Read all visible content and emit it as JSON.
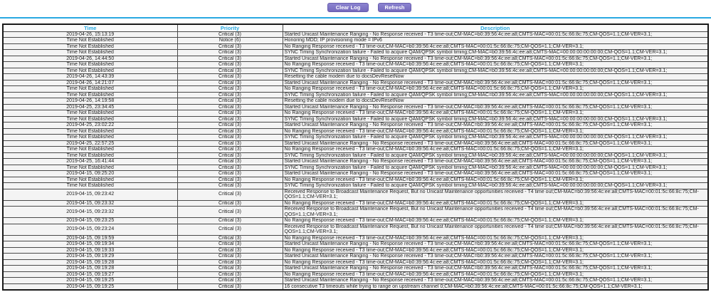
{
  "colors": {
    "accent_cyan": "#29a9e1",
    "button_purple": "#7d74c4",
    "priority_critical_label": "Critical (3)",
    "priority_notice_label": "Notice (6)"
  },
  "toolbar": {
    "clear_log_label": "Clear Log",
    "refresh_label": "Refresh"
  },
  "table": {
    "columns": [
      "Time",
      "Priority",
      "Description"
    ],
    "rows": [
      {
        "time": "2019-04-26, 15:13:19",
        "priority": "Critical (3)",
        "description": "Started Unicast Maintenance Ranging - No Response received - T3 time-out;CM-MAC=b0:39:56:4c:ee:a8;CMTS-MAC=00:01:5c:66:8c:75;CM-QOS=1.1;CM-VER=3.1;"
      },
      {
        "time": "Time Not Established",
        "priority": "Notice (6)",
        "description": "Honoring MDD; IP provisioning mode = IPv6"
      },
      {
        "time": "Time Not Established",
        "priority": "Critical (3)",
        "description": "No Ranging Response received - T3 time-out;CM-MAC=b0:39:56:4c:ee:a8;CMTS-MAC=00:01:5c:66:8c:75;CM-QOS=1.1;CM-VER=3.1;"
      },
      {
        "time": "Time Not Established",
        "priority": "Critical (3)",
        "description": "SYNC Timing Synchronization failure - Failed to acquire QAM/QPSK symbol timing;CM-MAC=b0:39:56:4c:ee:a8;CMTS-MAC=00:00:00:00:00:00;CM-QOS=1.1;CM-VER=3.1;"
      },
      {
        "time": "2019-04-26, 14:44:50",
        "priority": "Critical (3)",
        "description": "Started Unicast Maintenance Ranging - No Response received - T3 time-out;CM-MAC=b0:39:56:4c:ee:a8;CMTS-MAC=00:01:5c:66:8c:75;CM-QOS=1.1;CM-VER=3.1;"
      },
      {
        "time": "Time Not Established",
        "priority": "Critical (3)",
        "description": "No Ranging Response received - T3 time-out;CM-MAC=b0:39:56:4c:ee:a8;CMTS-MAC=00:01:5c:66:8c:75;CM-QOS=1.1;CM-VER=3.1;"
      },
      {
        "time": "Time Not Established",
        "priority": "Critical (3)",
        "description": "SYNC Timing Synchronization failure - Failed to acquire QAM/QPSK symbol timing;CM-MAC=b0:39:56:4c:ee:a8;CMTS-MAC=00:00:00:00:00:00;CM-QOS=1.1;CM-VER=3.1;"
      },
      {
        "time": "2019-04-26, 14:43:39",
        "priority": "Critical (3)",
        "description": "Resetting the cable modem due to docsDevResetNow"
      },
      {
        "time": "2019-04-26, 14:21:07",
        "priority": "Critical (3)",
        "description": "Started Unicast Maintenance Ranging - No Response received - T3 time-out;CM-MAC=b0:39:56:4c:ee:a8;CMTS-MAC=00:01:5c:66:8c:75;CM-QOS=1.1;CM-VER=3.1;"
      },
      {
        "time": "Time Not Established",
        "priority": "Critical (3)",
        "description": "No Ranging Response received - T3 time-out;CM-MAC=b0:39:56:4c:ee:a8;CMTS-MAC=00:01:5c:66:8c:75;CM-QOS=1.1;CM-VER=3.1;"
      },
      {
        "time": "Time Not Established",
        "priority": "Critical (3)",
        "description": "SYNC Timing Synchronization failure - Failed to acquire QAM/QPSK symbol timing;CM-MAC=b0:39:56:4c:ee:a8;CMTS-MAC=00:00:00:00:00:00;CM-QOS=1.1;CM-VER=3.1;"
      },
      {
        "time": "2019-04-26, 14:19:58",
        "priority": "Critical (3)",
        "description": "Resetting the cable modem due to docsDevResetNow"
      },
      {
        "time": "2019-04-25, 23:34:45",
        "priority": "Critical (3)",
        "description": "Started Unicast Maintenance Ranging - No Response received - T3 time-out;CM-MAC=b0:39:56:4c:ee:a8;CMTS-MAC=00:01:5c:66:8c:75;CM-QOS=1.1;CM-VER=3.1;"
      },
      {
        "time": "Time Not Established",
        "priority": "Critical (3)",
        "description": "No Ranging Response received - T3 time-out;CM-MAC=b0:39:56:4c:ee:a8;CMTS-MAC=00:01:5c:66:8c:75;CM-QOS=1.1;CM-VER=3.1;"
      },
      {
        "time": "Time Not Established",
        "priority": "Critical (3)",
        "description": "SYNC Timing Synchronization failure - Failed to acquire QAM/QPSK symbol timing;CM-MAC=b0:39:56:4c:ee:a8;CMTS-MAC=00:00:00:00:00:00;CM-QOS=1.1;CM-VER=3.1;"
      },
      {
        "time": "2019-04-25, 23:02:22",
        "priority": "Critical (3)",
        "description": "Started Unicast Maintenance Ranging - No Response received - T3 time-out;CM-MAC=b0:39:56:4c:ee:a8;CMTS-MAC=00:01:5c:66:8c:75;CM-QOS=1.1;CM-VER=3.1;"
      },
      {
        "time": "Time Not Established",
        "priority": "Critical (3)",
        "description": "No Ranging Response received - T3 time-out;CM-MAC=b0:39:56:4c:ee:a8;CMTS-MAC=00:01:5c:66:8c:75;CM-QOS=1.1;CM-VER=3.1;"
      },
      {
        "time": "Time Not Established",
        "priority": "Critical (3)",
        "description": "SYNC Timing Synchronization failure - Failed to acquire QAM/QPSK symbol timing;CM-MAC=b0:39:56:4c:ee:a8;CMTS-MAC=00:00:00:00:00:00;CM-QOS=1.1;CM-VER=3.1;"
      },
      {
        "time": "2019-04-25, 22:57:25",
        "priority": "Critical (3)",
        "description": "Started Unicast Maintenance Ranging - No Response received - T3 time-out;CM-MAC=b0:39:56:4c:ee:a8;CMTS-MAC=00:01:5c:66:8c:75;CM-QOS=1.1;CM-VER=3.1;"
      },
      {
        "time": "Time Not Established",
        "priority": "Critical (3)",
        "description": "No Ranging Response received - T3 time-out;CM-MAC=b0:39:56:4c:ee:a8;CMTS-MAC=00:01:5c:66:8c:75;CM-QOS=1.1;CM-VER=3.1;"
      },
      {
        "time": "Time Not Established",
        "priority": "Critical (3)",
        "description": "SYNC Timing Synchronization failure - Failed to acquire QAM/QPSK symbol timing;CM-MAC=b0:39:56:4c:ee:a8;CMTS-MAC=00:00:00:00:00:00;CM-QOS=1.1;CM-VER=3.1;"
      },
      {
        "time": "2019-04-25, 16:41:44",
        "priority": "Critical (3)",
        "description": "Started Unicast Maintenance Ranging - No Response received - T3 time-out;CM-MAC=b0:39:56:4c:ee:a8;CMTS-MAC=00:01:5c:66:8c:75;CM-QOS=1.1;CM-VER=3.1;"
      },
      {
        "time": "Time Not Established",
        "priority": "Critical (3)",
        "description": "SYNC Timing Synchronization failure - Failed to acquire QAM/QPSK symbol timing;CM-MAC=b0:39:56:4c:ee:a8;CMTS-MAC=00:00:00:00:00:00;CM-QOS=1.1;CM-VER=3.1;"
      },
      {
        "time": "2019-04-15, 09:25:20",
        "priority": "Critical (3)",
        "description": "Started Unicast Maintenance Ranging - No Response received - T3 time-out;CM-MAC=b0:39:56:4c:ee:a8;CMTS-MAC=00:01:5c:66:8c:75;CM-QOS=1.1;CM-VER=3.1;"
      },
      {
        "time": "Time Not Established",
        "priority": "Critical (3)",
        "description": "No Ranging Response received - T3 time-out;CM-MAC=b0:39:56:4c:ee:a8;CMTS-MAC=00:01:5c:66:8c:75;CM-QOS=1.1;CM-VER=3.1;"
      },
      {
        "time": "Time Not Established",
        "priority": "Critical (3)",
        "description": "SYNC Timing Synchronization failure - Failed to acquire QAM/QPSK symbol timing;CM-MAC=b0:39:56:4c:ee:a8;CMTS-MAC=00:00:00:00:00:00;CM-QOS=1.1;CM-VER=3.1;"
      },
      {
        "time": "2019-04-15, 09:23:42",
        "priority": "Critical (3)",
        "description": "Received Response to Broadcast Maintenance Request, But no Unicast Maintenance opportunities received - T4 time out;CM-MAC=b0:39:56:4c:ee:a8;CMTS-MAC=00:01:5c:66:8c:75;CM-QOS=1.1;CM-VER=3.1;"
      },
      {
        "time": "2019-04-15, 09:23:32",
        "priority": "Critical (3)",
        "description": "No Ranging Response received - T3 time-out;CM-MAC=b0:39:56:4c:ee:a8;CMTS-MAC=00:01:5c:66:8c:75;CM-QOS=1.1;CM-VER=3.1;"
      },
      {
        "time": "2019-04-15, 09:23:32",
        "priority": "Critical (3)",
        "description": "Received Response to Broadcast Maintenance Request, But no Unicast Maintenance opportunities received - T4 time out;CM-MAC=b0:39:56:4c:ee:a8;CMTS-MAC=00:01:5c:66:8c:75;CM-QOS=1.1;CM-VER=3.1;"
      },
      {
        "time": "2019-04-15, 09:23:25",
        "priority": "Critical (3)",
        "description": "No Ranging Response received - T3 time-out;CM-MAC=b0:39:56:4c:ee:a8;CMTS-MAC=00:01:5c:66:8c:75;CM-QOS=1.1;CM-VER=3.1;"
      },
      {
        "time": "2019-04-15, 09:23:24",
        "priority": "Critical (3)",
        "description": "Received Response to Broadcast Maintenance Request, But no Unicast Maintenance opportunities received - T4 time out;CM-MAC=b0:39:56:4c:ee:a8;CMTS-MAC=00:01:5c:66:8c:75;CM-QOS=1.1;CM-VER=3.1;"
      },
      {
        "time": "2019-04-15, 09:19:59",
        "priority": "Critical (3)",
        "description": "No Ranging Response received - T3 time-out;CM-MAC=b0:39:56:4c:ee:a8;CMTS-MAC=00:01:5c:66:8c:75;CM-QOS=1.1;CM-VER=3.1;"
      },
      {
        "time": "2019-04-15, 09:19:34",
        "priority": "Critical (3)",
        "description": "Started Unicast Maintenance Ranging - No Response received - T3 time-out;CM-MAC=b0:39:56:4c:ee:a8;CMTS-MAC=00:01:5c:66:8c:75;CM-QOS=1.1;CM-VER=3.1;"
      },
      {
        "time": "2019-04-15, 09:19:33",
        "priority": "Critical (3)",
        "description": "No Ranging Response received - T3 time-out;CM-MAC=b0:39:56:4c:ee:a8;CMTS-MAC=00:01:5c:66:8c:75;CM-QOS=1.1;CM-VER=3.1;"
      },
      {
        "time": "2019-04-15, 09:19:29",
        "priority": "Critical (3)",
        "description": "Started Unicast Maintenance Ranging - No Response received - T3 time-out;CM-MAC=b0:39:56:4c:ee:a8;CMTS-MAC=00:01:5c:66:8c:75;CM-QOS=1.1;CM-VER=3.1;"
      },
      {
        "time": "2019-04-15, 09:19:28",
        "priority": "Critical (3)",
        "description": "No Ranging Response received - T3 time-out;CM-MAC=b0:39:56:4c:ee:a8;CMTS-MAC=00:01:5c:66:8c:75;CM-QOS=1.1;CM-VER=3.1;"
      },
      {
        "time": "2019-04-15, 09:19:28",
        "priority": "Critical (3)",
        "description": "Started Unicast Maintenance Ranging - No Response received - T3 time-out;CM-MAC=b0:39:56:4c:ee:a8;CMTS-MAC=00:01:5c:66:8c:75;CM-QOS=1.1;CM-VER=3.1;"
      },
      {
        "time": "2019-04-15, 09:19:27",
        "priority": "Critical (3)",
        "description": "No Ranging Response received - T3 time-out;CM-MAC=b0:39:56:4c:ee:a8;CMTS-MAC=00:01:5c:66:8c:75;CM-QOS=1.1;CM-VER=3.1;"
      },
      {
        "time": "2019-04-15, 09:19:25",
        "priority": "Critical (3)",
        "description": "Started Unicast Maintenance Ranging - No Response received - T3 time-out;CM-MAC=b0:39:56:4c:ee:a8;CMTS-MAC=00:01:5c:66:8c:75;CM-QOS=1.1;CM-VER=3.1;"
      },
      {
        "time": "2019-04-15, 09:19:25",
        "priority": "Critical (3)",
        "description": "16 consecutive T3 timeouts while trying to range on upstream channel 0;CM-MAC=b0:39:56:4c:ee:a8;CMTS-MAC=00:01:5c:66:8c:75;CM-QOS=1.1;CM-VER=3.1;"
      }
    ]
  }
}
